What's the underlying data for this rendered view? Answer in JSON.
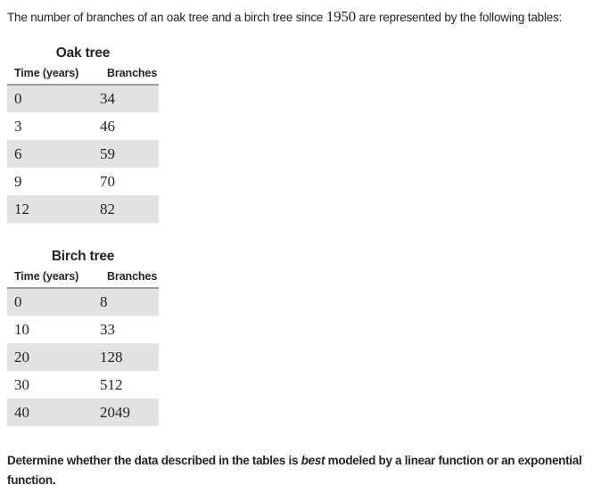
{
  "intro": {
    "before_year": "The number of branches of an oak tree and a birch tree since ",
    "year": "1950",
    "after_year": " are represented by the following tables:"
  },
  "tables": [
    {
      "id": "oak",
      "title": "Oak tree",
      "headers": [
        "Time (years)",
        "Branches"
      ],
      "rows": [
        [
          "0",
          "34"
        ],
        [
          "3",
          "46"
        ],
        [
          "6",
          "59"
        ],
        [
          "9",
          "70"
        ],
        [
          "12",
          "82"
        ]
      ]
    },
    {
      "id": "birch",
      "title": "Birch tree",
      "headers": [
        "Time (years)",
        "Branches"
      ],
      "rows": [
        [
          "0",
          "8"
        ],
        [
          "10",
          "33"
        ],
        [
          "20",
          "128"
        ],
        [
          "30",
          "512"
        ],
        [
          "40",
          "2049"
        ]
      ]
    }
  ],
  "question": {
    "before_emphasis": "Determine whether the data described in the tables is ",
    "emphasis": "best",
    "after_emphasis": " modeled by a linear function or an exponential function."
  },
  "colors": {
    "text": "#21242c",
    "background": "#ffffff",
    "row_shading": "#e2e2e2",
    "header_rule": "#9c9c9c"
  }
}
